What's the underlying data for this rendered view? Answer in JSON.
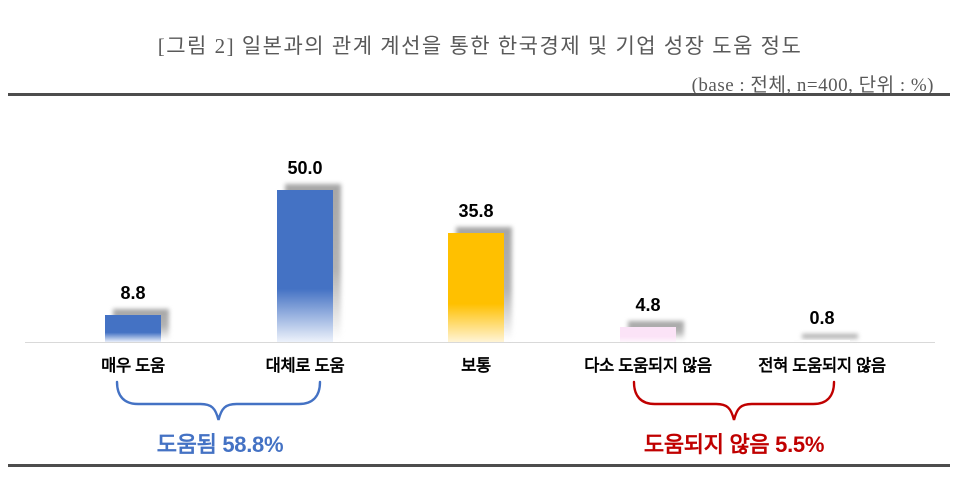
{
  "header": {
    "title": "[그림 2] 일본과의 관계 계선을 통한 한국경제 및 기업 성장 도움 정도",
    "subtitle": "(base : 전체, n=400, 단위 : %)"
  },
  "chart_data": {
    "type": "bar",
    "title": "[그림 2] 일본과의 관계 계선을 통한 한국경제 및 기업 성장 도움 정도",
    "base_note": "(base : 전체, n=400, 단위 : %)",
    "unit": "%",
    "n": 400,
    "categories": [
      "매우 도움",
      "대체로 도움",
      "보통",
      "다소 도움되지 않음",
      "전혀 도움되지 않음"
    ],
    "values": [
      8.8,
      50.0,
      35.8,
      4.8,
      0.8
    ],
    "bars": [
      {
        "category": "매우 도움",
        "value": 8.8,
        "value_label": "8.8",
        "color": "#4472C4",
        "fade": "#E9EFFA"
      },
      {
        "category": "대체로 도움",
        "value": 50.0,
        "value_label": "50.0",
        "color": "#4472C4",
        "fade": "#EDF2FB"
      },
      {
        "category": "보통",
        "value": 35.8,
        "value_label": "35.8",
        "color": "#FFC000",
        "fade": "#FFF4D6"
      },
      {
        "category": "다소 도움되지 않음",
        "value": 4.8,
        "value_label": "4.8",
        "color": "#FBE3F7",
        "fade": "#FEF6FC"
      },
      {
        "category": "전혀 도움되지 않음",
        "value": 0.8,
        "value_label": "0.8",
        "color": "#FDFDFD",
        "fade": "#FFFFFF"
      }
    ],
    "groups": [
      {
        "label": "도움됨 58.8%",
        "total": 58.8,
        "categories_spanned": [
          "매우 도움",
          "대체로 도움"
        ],
        "color": "#4472C4"
      },
      {
        "label": "도움되지 않음 5.5%",
        "total": 5.5,
        "categories_spanned": [
          "다소 도움되지 않음",
          "전혀 도움되지 않음"
        ],
        "color": "#C00000"
      }
    ],
    "ylim": [
      0,
      55
    ],
    "grid": false,
    "legend": false,
    "axis_line_color": "#D9D9D9",
    "rule_color": "#4D4D4D",
    "text_color": "#595959"
  }
}
